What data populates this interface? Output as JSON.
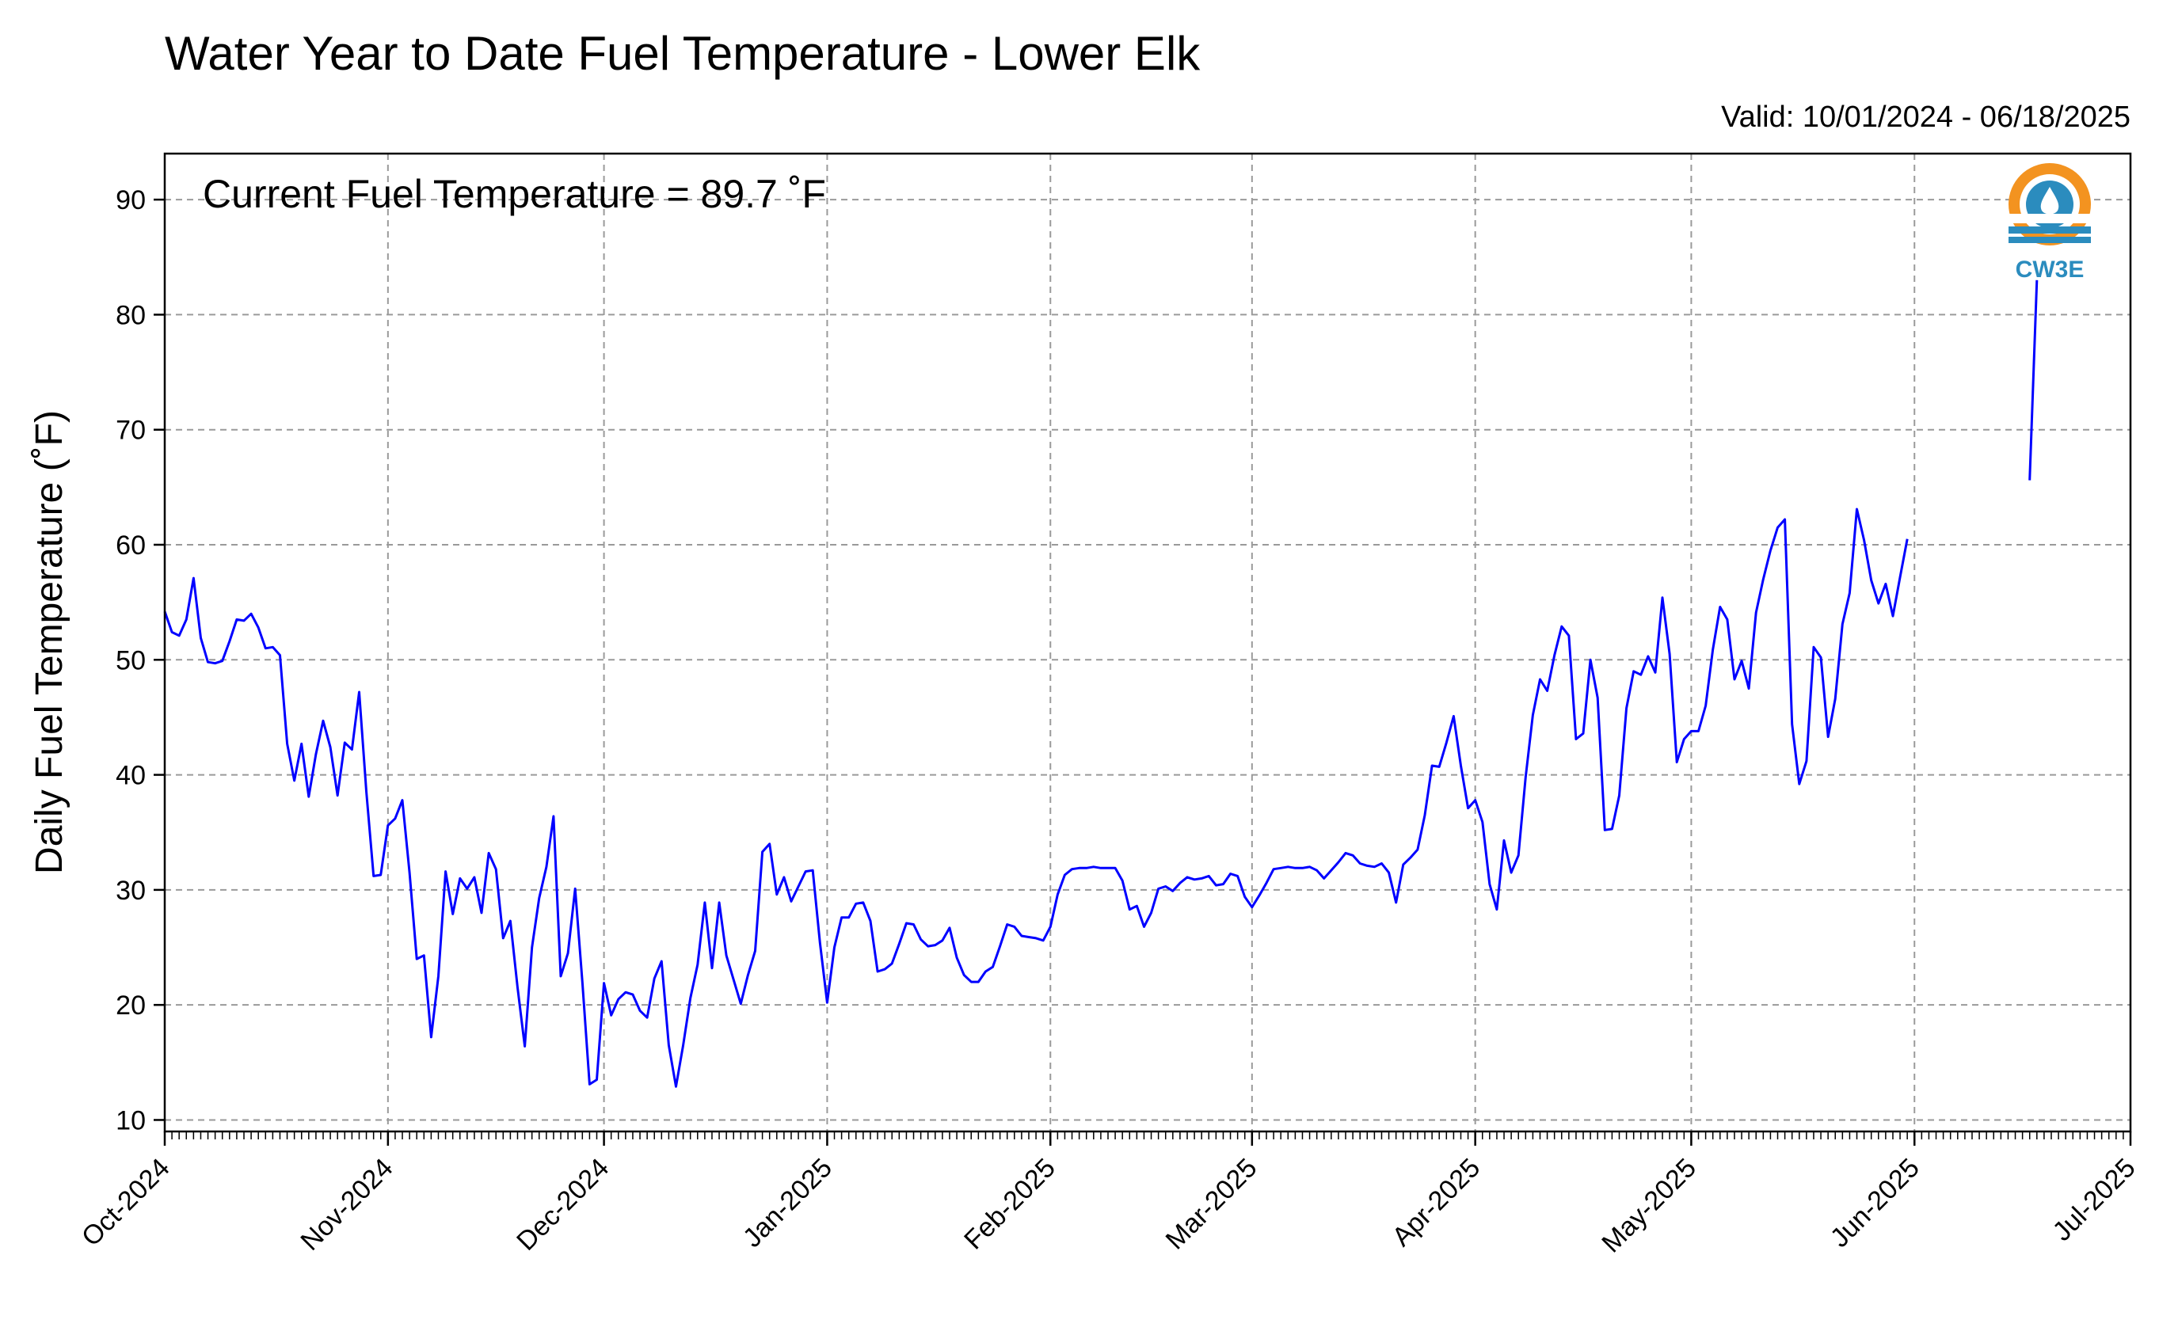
{
  "figure": {
    "title": "Water Year to Date Fuel Temperature - Lower Elk",
    "valid": "Valid: 10/01/2024 - 06/18/2025",
    "annotation": "Current Fuel Temperature = 89.7 ˚F",
    "logo": {
      "text": "CW3E",
      "icon": "cw3e-logo-icon",
      "colors": {
        "orange": "#f39320",
        "blue": "#2b8cbe"
      }
    }
  },
  "chart_data": {
    "type": "line",
    "title": "Water Year to Date Fuel Temperature - Lower Elk",
    "xlabel": "",
    "ylabel": "Daily Fuel Temperature (˚F)",
    "xlim": [
      "2024-10-01",
      "2025-07-01"
    ],
    "ylim": [
      9,
      94
    ],
    "grid": true,
    "line_color": "#0000ff",
    "x_ticks": [
      "2024-10-01",
      "2024-11-01",
      "2024-12-01",
      "2025-01-01",
      "2025-02-01",
      "2025-03-01",
      "2025-04-01",
      "2025-05-01",
      "2025-06-01",
      "2025-07-01"
    ],
    "x_tick_labels": [
      "Oct-2024",
      "Nov-2024",
      "Dec-2024",
      "Jan-2025",
      "Feb-2025",
      "Mar-2025",
      "Apr-2025",
      "May-2025",
      "Jun-2025",
      "Jul-2025"
    ],
    "y_ticks": [
      10,
      20,
      30,
      40,
      50,
      60,
      70,
      80,
      90
    ],
    "y_tick_labels": [
      "10",
      "20",
      "30",
      "40",
      "50",
      "60",
      "70",
      "80",
      "90"
    ],
    "series": [
      {
        "start_date": "2024-10-01",
        "values": [
          54.2,
          52.4,
          52.1,
          53.5,
          57.1,
          51.9,
          49.8,
          49.7,
          49.9,
          51.6,
          53.5,
          53.4,
          54.0,
          52.8,
          51.0,
          51.1,
          50.4,
          42.7,
          39.5,
          42.7,
          38.1,
          41.8,
          44.7,
          42.4,
          38.2,
          42.8,
          42.2,
          47.2,
          38.5,
          31.2,
          31.3,
          35.6,
          36.2,
          37.8,
          31.5,
          24.0,
          24.3,
          17.2,
          22.5,
          31.6,
          27.9,
          31.0,
          30.1,
          31.1,
          28.0,
          33.2,
          31.8,
          25.8,
          27.3,
          21.5,
          16.4,
          25.0,
          29.3,
          32.0,
          36.4,
          22.5,
          24.5,
          30.1,
          22.0,
          13.1,
          13.5,
          21.9,
          19.1,
          20.5,
          21.1,
          20.9,
          19.5,
          18.9,
          22.3,
          23.8,
          16.5,
          12.9,
          16.5,
          20.6,
          23.5,
          28.9,
          23.2,
          28.9,
          24.3,
          22.2,
          20.1,
          22.6,
          24.7,
          33.3,
          34.0,
          29.6,
          31.1,
          29.0,
          30.3,
          31.6,
          31.7,
          25.4,
          20.2,
          25.0,
          27.6,
          27.6,
          28.8,
          28.9,
          27.3,
          22.9,
          23.1,
          23.6,
          25.3,
          27.1,
          27.0,
          25.7,
          25.1,
          25.2,
          25.6,
          26.7,
          24.1,
          22.6,
          22.0,
          22.0,
          22.9,
          23.3,
          25.1,
          27.0,
          26.8,
          26.0,
          25.9,
          25.8,
          25.6,
          26.8,
          29.6,
          31.3,
          31.8,
          31.9,
          31.9,
          32.0,
          31.9,
          31.9,
          31.9,
          30.8,
          28.3,
          28.6,
          26.8,
          28.0,
          30.1,
          30.3,
          29.9,
          30.6,
          31.1,
          30.9,
          31.0,
          31.2,
          30.4,
          30.5,
          31.4,
          31.2,
          29.4,
          28.5,
          29.5,
          30.6,
          31.8,
          31.9,
          32.0,
          31.9,
          31.9,
          32.0,
          31.7,
          31.0,
          31.7,
          32.4,
          33.2,
          33.0,
          32.3,
          32.1,
          32.0,
          32.3,
          31.5,
          28.9,
          32.2,
          32.8,
          33.5,
          36.5,
          40.8,
          40.7,
          42.8,
          45.1,
          40.8,
          37.1,
          37.8,
          35.9,
          30.5,
          28.3,
          34.3,
          31.5,
          33.0,
          39.8,
          45.2,
          48.3,
          47.3,
          50.4,
          52.9,
          52.1,
          43.1,
          43.6,
          50.0,
          46.7,
          35.2,
          35.3,
          38.2,
          45.8,
          49.0,
          48.7,
          50.3,
          48.9,
          55.4,
          50.5,
          41.1,
          43.1,
          43.8,
          43.8,
          46.0,
          50.9,
          54.6,
          53.5,
          48.3,
          49.9,
          47.5,
          54.1,
          57.0,
          59.5,
          61.5,
          62.2,
          44.4,
          39.2,
          41.2,
          51.1,
          50.2,
          43.3,
          46.6,
          53.1,
          55.8,
          63.1,
          60.4,
          56.9,
          54.9,
          56.6,
          53.8,
          57.2,
          60.5,
          null,
          null,
          null,
          null,
          null,
          null,
          null,
          null,
          null,
          null,
          null,
          null,
          null,
          null,
          null,
          null,
          65.6,
          83.0
        ]
      }
    ]
  }
}
